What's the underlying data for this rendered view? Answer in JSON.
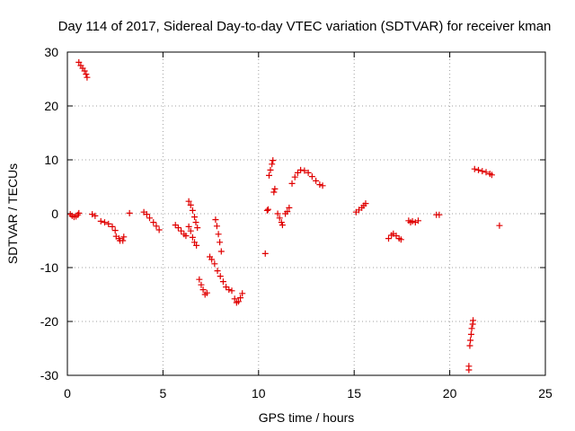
{
  "chart_data": {
    "type": "scatter",
    "title": "Day 114 of 2017, Sidereal Day-to-day VTEC variation (SDTVAR) for receiver kman",
    "xlabel": "GPS time / hours",
    "ylabel": "SDTVAR / TECUs",
    "xlim": [
      0,
      25
    ],
    "ylim": [
      -30,
      30
    ],
    "xticks": [
      0,
      5,
      10,
      15,
      20,
      25
    ],
    "yticks": [
      -30,
      -20,
      -10,
      0,
      10,
      20,
      30
    ],
    "grid": true,
    "marker": "plus",
    "color": "#e00000",
    "series": [
      {
        "name": "SDTVAR",
        "points": [
          [
            0.15,
            -0.1
          ],
          [
            0.25,
            -0.4
          ],
          [
            0.35,
            -0.6
          ],
          [
            0.45,
            -0.5
          ],
          [
            0.55,
            -0.2
          ],
          [
            0.6,
            0.1
          ],
          [
            0.6,
            28.1
          ],
          [
            0.7,
            27.5
          ],
          [
            0.8,
            27.0
          ],
          [
            0.9,
            26.5
          ],
          [
            0.98,
            25.9
          ],
          [
            1.03,
            25.3
          ],
          [
            1.3,
            -0.1
          ],
          [
            1.45,
            -0.4
          ],
          [
            1.75,
            -1.4
          ],
          [
            1.95,
            -1.6
          ],
          [
            2.15,
            -1.9
          ],
          [
            2.35,
            -2.4
          ],
          [
            2.5,
            -3.1
          ],
          [
            2.55,
            -4.2
          ],
          [
            2.7,
            -4.6
          ],
          [
            2.75,
            -5.0
          ],
          [
            2.9,
            -5.0
          ],
          [
            2.95,
            -4.3
          ],
          [
            3.25,
            0.1
          ],
          [
            4.0,
            0.3
          ],
          [
            4.15,
            -0.1
          ],
          [
            4.3,
            -0.8
          ],
          [
            4.5,
            -1.6
          ],
          [
            4.65,
            -2.3
          ],
          [
            4.8,
            -3.0
          ],
          [
            5.65,
            -2.1
          ],
          [
            5.8,
            -2.6
          ],
          [
            5.95,
            -3.2
          ],
          [
            6.1,
            -3.8
          ],
          [
            6.2,
            -4.1
          ],
          [
            6.35,
            2.3
          ],
          [
            6.45,
            1.6
          ],
          [
            6.55,
            0.6
          ],
          [
            6.65,
            -0.6
          ],
          [
            6.72,
            -1.6
          ],
          [
            6.8,
            -2.6
          ],
          [
            6.35,
            -2.4
          ],
          [
            6.45,
            -3.2
          ],
          [
            6.55,
            -4.4
          ],
          [
            6.65,
            -5.3
          ],
          [
            6.75,
            -5.9
          ],
          [
            6.9,
            -12.2
          ],
          [
            7.0,
            -13.2
          ],
          [
            7.1,
            -14.1
          ],
          [
            7.2,
            -15.0
          ],
          [
            7.3,
            -14.7
          ],
          [
            7.45,
            -8.0
          ],
          [
            7.55,
            -8.5
          ],
          [
            7.7,
            -9.3
          ],
          [
            7.85,
            -10.6
          ],
          [
            8.0,
            -11.6
          ],
          [
            8.15,
            -12.6
          ],
          [
            8.3,
            -13.6
          ],
          [
            8.45,
            -14.1
          ],
          [
            8.6,
            -14.3
          ],
          [
            8.75,
            -15.8
          ],
          [
            8.85,
            -16.5
          ],
          [
            8.95,
            -16.3
          ],
          [
            9.05,
            -15.6
          ],
          [
            9.15,
            -14.8
          ],
          [
            7.75,
            -1.1
          ],
          [
            7.82,
            -2.3
          ],
          [
            7.9,
            -3.8
          ],
          [
            7.97,
            -5.3
          ],
          [
            8.05,
            -7.0
          ],
          [
            10.35,
            -7.4
          ],
          [
            10.45,
            0.6
          ],
          [
            10.5,
            0.8
          ],
          [
            10.55,
            7.1
          ],
          [
            10.62,
            8.1
          ],
          [
            10.7,
            9.2
          ],
          [
            10.75,
            9.9
          ],
          [
            10.8,
            4.0
          ],
          [
            10.85,
            4.6
          ],
          [
            11.0,
            0.0
          ],
          [
            11.1,
            -0.8
          ],
          [
            11.2,
            -1.6
          ],
          [
            11.25,
            -2.1
          ],
          [
            11.4,
            0.0
          ],
          [
            11.5,
            0.4
          ],
          [
            11.6,
            1.1
          ],
          [
            11.75,
            5.6
          ],
          [
            11.9,
            6.8
          ],
          [
            12.05,
            7.6
          ],
          [
            12.2,
            8.1
          ],
          [
            12.4,
            8.0
          ],
          [
            12.6,
            7.6
          ],
          [
            12.8,
            6.9
          ],
          [
            13.0,
            6.1
          ],
          [
            13.2,
            5.4
          ],
          [
            13.35,
            5.2
          ],
          [
            15.1,
            0.3
          ],
          [
            15.25,
            0.7
          ],
          [
            15.4,
            1.1
          ],
          [
            15.5,
            1.5
          ],
          [
            15.6,
            1.9
          ],
          [
            16.8,
            -4.6
          ],
          [
            16.95,
            -4.0
          ],
          [
            17.05,
            -3.7
          ],
          [
            17.2,
            -4.1
          ],
          [
            17.35,
            -4.6
          ],
          [
            17.45,
            -4.8
          ],
          [
            17.85,
            -1.3
          ],
          [
            17.95,
            -1.6
          ],
          [
            18.05,
            -1.4
          ],
          [
            18.2,
            -1.6
          ],
          [
            18.35,
            -1.3
          ],
          [
            19.3,
            -0.2
          ],
          [
            19.45,
            -0.2
          ],
          [
            21.0,
            -29.0
          ],
          [
            21.0,
            -28.3
          ],
          [
            21.05,
            -24.5
          ],
          [
            21.08,
            -23.5
          ],
          [
            21.12,
            -22.4
          ],
          [
            21.15,
            -21.3
          ],
          [
            21.2,
            -20.5
          ],
          [
            21.22,
            -19.8
          ],
          [
            21.3,
            8.3
          ],
          [
            21.5,
            8.1
          ],
          [
            21.7,
            7.9
          ],
          [
            21.9,
            7.7
          ],
          [
            22.1,
            7.4
          ],
          [
            22.2,
            7.2
          ],
          [
            22.6,
            -2.2
          ]
        ]
      }
    ]
  }
}
